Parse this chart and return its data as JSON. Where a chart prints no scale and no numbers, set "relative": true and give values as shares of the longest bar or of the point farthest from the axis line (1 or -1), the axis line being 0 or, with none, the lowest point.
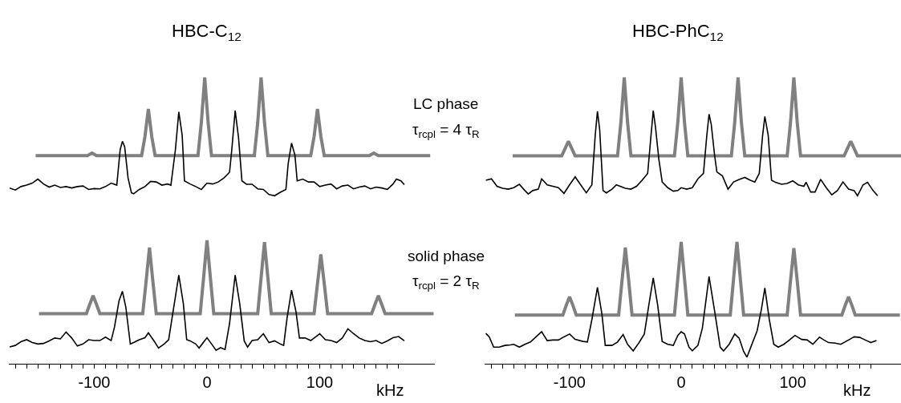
{
  "chart_data": [
    {
      "type": "line",
      "title": "HBC-C$_{12}$",
      "relative": true,
      "xlabel": "kHz",
      "xlim": [
        -176,
        202
      ],
      "xticks": [
        {
          "value": -170,
          "label": null
        },
        {
          "value": -160,
          "label": null
        },
        {
          "value": -150,
          "label": null
        },
        {
          "value": -140,
          "label": null
        },
        {
          "value": -130,
          "label": null
        },
        {
          "value": -120,
          "label": null
        },
        {
          "value": -110,
          "label": null
        },
        -100,
        {
          "value": -90,
          "label": null
        },
        {
          "value": -80,
          "label": null
        },
        {
          "value": -70,
          "label": null
        },
        {
          "value": -60,
          "label": null
        },
        {
          "value": -50,
          "label": null
        },
        {
          "value": -40,
          "label": null
        },
        {
          "value": -30,
          "label": null
        },
        {
          "value": -20,
          "label": null
        },
        {
          "value": -10,
          "label": null
        },
        0,
        {
          "value": 10,
          "label": null
        },
        {
          "value": 20,
          "label": null
        },
        {
          "value": 30,
          "label": null
        },
        {
          "value": 40,
          "label": null
        },
        {
          "value": 50,
          "label": null
        },
        {
          "value": 60,
          "label": null
        },
        {
          "value": 70,
          "label": null
        },
        {
          "value": 80,
          "label": null
        },
        {
          "value": 90,
          "label": null
        },
        100,
        {
          "value": 110,
          "label": null
        },
        {
          "value": 120,
          "label": null
        },
        {
          "value": 130,
          "label": null
        },
        {
          "value": 140,
          "label": null
        },
        {
          "value": 150,
          "label": null
        },
        {
          "value": 160,
          "label": null
        },
        {
          "value": 170,
          "label": null
        }
      ],
      "annotations": [
        "LC phase",
        "τ$_{rcpl}$ = 4 τ$_{R}$",
        "solid phase",
        "τ$_{rcpl}$ = 2 τ$_{R}$"
      ],
      "series": [
        {
          "color": "#808080",
          "x": [
            -152,
            -106,
            -102,
            -98,
            -58,
            -55,
            -52,
            -49,
            -46,
            -8,
            -5,
            -2,
            1,
            4,
            42,
            45,
            48,
            51,
            54,
            92,
            95,
            98,
            101,
            104,
            144,
            148,
            152,
            198
          ],
          "values": [
            0.727,
            0.727,
            0.736,
            0.727,
            0.727,
            0.794,
            0.89,
            0.794,
            0.727,
            0.727,
            0.843,
            1.0,
            0.843,
            0.727,
            0.727,
            0.843,
            1.0,
            0.843,
            0.727,
            0.727,
            0.794,
            0.89,
            0.794,
            0.727,
            0.727,
            0.736,
            0.727,
            0.727
          ]
        },
        {
          "color": "#000000",
          "x": [
            -175,
            -170,
            -165,
            -160,
            -155,
            -150,
            -145,
            -140,
            -135,
            -130,
            -125,
            -120,
            -115,
            -110,
            -105,
            -100,
            -95,
            -90,
            -85,
            -80,
            -77,
            -75,
            -73,
            -70,
            -67,
            -65,
            -60,
            -55,
            -50,
            -45,
            -40,
            -35,
            -32,
            -28,
            -25,
            -22,
            -20,
            -15,
            -10,
            -5,
            0,
            5,
            10,
            15,
            20,
            22,
            25,
            28,
            31,
            35,
            40,
            45,
            50,
            55,
            60,
            65,
            70,
            72,
            75,
            78,
            80,
            85,
            90,
            95,
            100,
            105,
            110,
            115,
            120,
            125,
            130,
            135,
            140,
            145,
            150,
            155,
            160,
            165,
            168,
            172,
            175
          ],
          "values": [
            0.614,
            0.607,
            0.619,
            0.624,
            0.631,
            0.645,
            0.628,
            0.617,
            0.624,
            0.616,
            0.619,
            0.614,
            0.619,
            0.621,
            0.609,
            0.612,
            0.611,
            0.619,
            0.631,
            0.624,
            0.748,
            0.777,
            0.758,
            0.649,
            0.597,
            0.594,
            0.609,
            0.619,
            0.637,
            0.635,
            0.624,
            0.628,
            0.624,
            0.748,
            0.88,
            0.798,
            0.639,
            0.628,
            0.619,
            0.609,
            0.631,
            0.628,
            0.635,
            0.649,
            0.669,
            0.748,
            0.884,
            0.789,
            0.639,
            0.627,
            0.627,
            0.611,
            0.609,
            0.591,
            0.587,
            0.599,
            0.609,
            0.699,
            0.771,
            0.729,
            0.639,
            0.645,
            0.635,
            0.635,
            0.619,
            0.624,
            0.628,
            0.611,
            0.621,
            0.624,
            0.611,
            0.617,
            0.621,
            0.611,
            0.617,
            0.614,
            0.609,
            0.628,
            0.645,
            0.639,
            0.626
          ]
        },
        {
          "color": "#808080",
          "x": [
            -149,
            -107,
            -104,
            -101,
            -98,
            -95,
            -57,
            -54,
            -51,
            -48,
            -45,
            -6,
            -3,
            0,
            3,
            6,
            45,
            48,
            51,
            54,
            57,
            95,
            98,
            101,
            104,
            107,
            146,
            149,
            152,
            155,
            158,
            201
          ],
          "values": [
            0.175,
            0.175,
            0.207,
            0.238,
            0.207,
            0.175,
            0.175,
            0.288,
            0.406,
            0.288,
            0.175,
            0.175,
            0.301,
            0.431,
            0.301,
            0.175,
            0.175,
            0.301,
            0.425,
            0.301,
            0.175,
            0.175,
            0.28,
            0.382,
            0.28,
            0.175,
            0.175,
            0.207,
            0.238,
            0.207,
            0.175,
            0.175
          ]
        },
        {
          "color": "#000000",
          "x": [
            -175,
            -170,
            -165,
            -160,
            -155,
            -150,
            -145,
            -140,
            -135,
            -130,
            -125,
            -120,
            -115,
            -110,
            -105,
            -100,
            -95,
            -90,
            -85,
            -82,
            -78,
            -75,
            -72,
            -68,
            -65,
            -60,
            -55,
            -52,
            -47,
            -43,
            -38,
            -34,
            -31,
            -25,
            -21,
            -18,
            -15,
            -10,
            -7,
            0,
            5,
            8,
            12,
            16,
            20,
            25,
            29,
            33,
            36,
            40,
            45,
            50,
            55,
            60,
            65,
            68,
            71,
            75,
            79,
            82,
            87,
            92,
            100,
            105,
            110,
            115,
            120,
            125,
            130,
            135,
            140,
            145,
            150,
            155,
            160,
            165,
            170,
            175
          ],
          "values": [
            0.059,
            0.064,
            0.077,
            0.084,
            0.074,
            0.069,
            0.071,
            0.08,
            0.09,
            0.087,
            0.111,
            0.09,
            0.062,
            0.069,
            0.084,
            0.081,
            0.081,
            0.093,
            0.081,
            0.129,
            0.22,
            0.253,
            0.198,
            0.069,
            0.074,
            0.084,
            0.091,
            0.108,
            0.08,
            0.055,
            0.069,
            0.084,
            0.159,
            0.31,
            0.211,
            0.084,
            0.08,
            0.069,
            0.055,
            0.091,
            0.064,
            0.047,
            0.056,
            0.05,
            0.14,
            0.31,
            0.211,
            0.08,
            0.058,
            0.081,
            0.084,
            0.105,
            0.074,
            0.08,
            0.069,
            0.064,
            0.159,
            0.257,
            0.18,
            0.09,
            0.09,
            0.081,
            0.105,
            0.084,
            0.081,
            0.074,
            0.09,
            0.122,
            0.105,
            0.09,
            0.081,
            0.077,
            0.081,
            0.071,
            0.08,
            0.091,
            0.095,
            0.08
          ]
        }
      ]
    },
    {
      "type": "line",
      "title": "HBC-PhC$_{12}$",
      "relative": true,
      "xlabel": "kHz",
      "xlim": [
        -176,
        197
      ],
      "xticks": [
        {
          "value": -170,
          "label": null
        },
        {
          "value": -160,
          "label": null
        },
        {
          "value": -150,
          "label": null
        },
        {
          "value": -140,
          "label": null
        },
        {
          "value": -130,
          "label": null
        },
        {
          "value": -120,
          "label": null
        },
        {
          "value": -110,
          "label": null
        },
        -100,
        {
          "value": -90,
          "label": null
        },
        {
          "value": -80,
          "label": null
        },
        {
          "value": -70,
          "label": null
        },
        {
          "value": -60,
          "label": null
        },
        {
          "value": -50,
          "label": null
        },
        {
          "value": -40,
          "label": null
        },
        {
          "value": -30,
          "label": null
        },
        {
          "value": -20,
          "label": null
        },
        {
          "value": -10,
          "label": null
        },
        0,
        {
          "value": 10,
          "label": null
        },
        {
          "value": 20,
          "label": null
        },
        {
          "value": 30,
          "label": null
        },
        {
          "value": 40,
          "label": null
        },
        {
          "value": 50,
          "label": null
        },
        {
          "value": 60,
          "label": null
        },
        {
          "value": 70,
          "label": null
        },
        {
          "value": 80,
          "label": null
        },
        {
          "value": 90,
          "label": null
        },
        100,
        {
          "value": 110,
          "label": null
        },
        {
          "value": 120,
          "label": null
        },
        {
          "value": 130,
          "label": null
        },
        {
          "value": 140,
          "label": null
        },
        {
          "value": 150,
          "label": null
        },
        {
          "value": 160,
          "label": null
        },
        {
          "value": 170,
          "label": null
        }
      ],
      "series": [
        {
          "color": "#808080",
          "x": [
            -151,
            -107,
            -104,
            -101,
            -98,
            -95,
            -57,
            -54,
            -51,
            -48,
            -45,
            -6,
            -3,
            0,
            3,
            6,
            45,
            48,
            51,
            54,
            57,
            95,
            98,
            101,
            104,
            107,
            146,
            149,
            152,
            155,
            158,
            197
          ],
          "values": [
            0.726,
            0.726,
            0.752,
            0.777,
            0.752,
            0.726,
            0.726,
            0.843,
            1.0,
            0.843,
            0.726,
            0.726,
            0.843,
            1.0,
            0.843,
            0.726,
            0.726,
            0.843,
            1.0,
            0.843,
            0.726,
            0.726,
            0.843,
            1.0,
            0.843,
            0.726,
            0.726,
            0.752,
            0.777,
            0.752,
            0.726,
            0.726
          ]
        },
        {
          "color": "#000000",
          "x": [
            -175,
            -170,
            -165,
            -160,
            -155,
            -150,
            -145,
            -140,
            -137,
            -133,
            -128,
            -125,
            -120,
            -115,
            -110,
            -105,
            -100,
            -95,
            -90,
            -85,
            -80,
            -77,
            -75,
            -73,
            -70,
            -67,
            -62,
            -58,
            -50,
            -45,
            -40,
            -35,
            -30,
            -27,
            -25,
            -23,
            -20,
            -17,
            -12,
            -7,
            -3,
            0,
            5,
            10,
            15,
            20,
            23,
            25,
            27,
            30,
            32,
            37,
            42,
            47,
            52,
            57,
            62,
            66,
            70,
            73,
            75,
            78,
            81,
            85,
            90,
            95,
            100,
            105,
            110,
            112,
            116,
            120,
            125,
            130,
            135,
            140,
            145,
            150,
            155,
            158,
            163,
            167,
            172,
            176
          ],
          "values": [
            0.641,
            0.646,
            0.62,
            0.613,
            0.61,
            0.615,
            0.627,
            0.605,
            0.593,
            0.605,
            0.61,
            0.646,
            0.625,
            0.62,
            0.615,
            0.595,
            0.625,
            0.653,
            0.625,
            0.597,
            0.625,
            0.798,
            0.882,
            0.818,
            0.605,
            0.597,
            0.61,
            0.625,
            0.613,
            0.61,
            0.62,
            0.641,
            0.665,
            0.798,
            0.884,
            0.827,
            0.715,
            0.635,
            0.615,
            0.603,
            0.605,
            0.615,
            0.61,
            0.615,
            0.646,
            0.665,
            0.798,
            0.872,
            0.835,
            0.727,
            0.67,
            0.656,
            0.61,
            0.635,
            0.644,
            0.651,
            0.641,
            0.635,
            0.665,
            0.798,
            0.864,
            0.798,
            0.641,
            0.633,
            0.627,
            0.63,
            0.639,
            0.625,
            0.62,
            0.634,
            0.6,
            0.6,
            0.644,
            0.615,
            0.59,
            0.605,
            0.635,
            0.61,
            0.605,
            0.587,
            0.625,
            0.634,
            0.605,
            0.587
          ]
        },
        {
          "color": "#808080",
          "x": [
            -149,
            -106,
            -103,
            -100,
            -97,
            -94,
            -56,
            -53,
            -50,
            -47,
            -44,
            -6,
            -3,
            0,
            3,
            6,
            44,
            47,
            50,
            53,
            56,
            95,
            98,
            101,
            104,
            107,
            144,
            147,
            150,
            153,
            156,
            196
          ],
          "values": [
            0.17,
            0.17,
            0.204,
            0.234,
            0.204,
            0.17,
            0.17,
            0.29,
            0.406,
            0.29,
            0.17,
            0.17,
            0.298,
            0.426,
            0.298,
            0.17,
            0.17,
            0.298,
            0.426,
            0.298,
            0.17,
            0.17,
            0.29,
            0.404,
            0.29,
            0.17,
            0.17,
            0.204,
            0.234,
            0.204,
            0.17,
            0.17
          ]
        },
        {
          "color": "#000000",
          "x": [
            -175,
            -172,
            -168,
            -163,
            -158,
            -153,
            -150,
            -145,
            -140,
            -135,
            -130,
            -125,
            -120,
            -115,
            -110,
            -105,
            -100,
            -95,
            -88,
            -84,
            -80,
            -75,
            -71,
            -68,
            -62,
            -57,
            -52,
            -48,
            -43,
            -38,
            -33,
            -29,
            -25,
            -21,
            -17,
            -12,
            -7,
            -3,
            0,
            3,
            7,
            10,
            15,
            19,
            25,
            30,
            35,
            38,
            43,
            48,
            52,
            56,
            59,
            63,
            68,
            72,
            75,
            79,
            83,
            87,
            92,
            97,
            102,
            108,
            113,
            118,
            124,
            128,
            132,
            138,
            143,
            150,
            155,
            160,
            165,
            170,
            175
          ],
          "values": [
            0.106,
            0.094,
            0.058,
            0.058,
            0.064,
            0.066,
            0.068,
            0.058,
            0.068,
            0.076,
            0.094,
            0.112,
            0.081,
            0.083,
            0.083,
            0.094,
            0.104,
            0.085,
            0.078,
            0.076,
            0.154,
            0.267,
            0.174,
            0.064,
            0.064,
            0.076,
            0.102,
            0.068,
            0.045,
            0.072,
            0.104,
            0.204,
            0.3,
            0.204,
            0.078,
            0.068,
            0.064,
            0.099,
            0.112,
            0.104,
            0.058,
            0.045,
            0.064,
            0.124,
            0.305,
            0.184,
            0.058,
            0.045,
            0.068,
            0.104,
            0.089,
            0.043,
            0.023,
            0.064,
            0.114,
            0.192,
            0.265,
            0.154,
            0.068,
            0.058,
            0.068,
            0.083,
            0.099,
            0.085,
            0.083,
            0.068,
            0.093,
            0.083,
            0.074,
            0.072,
            0.068,
            0.083,
            0.094,
            0.092,
            0.083,
            0.074,
            0.081
          ]
        }
      ]
    }
  ]
}
